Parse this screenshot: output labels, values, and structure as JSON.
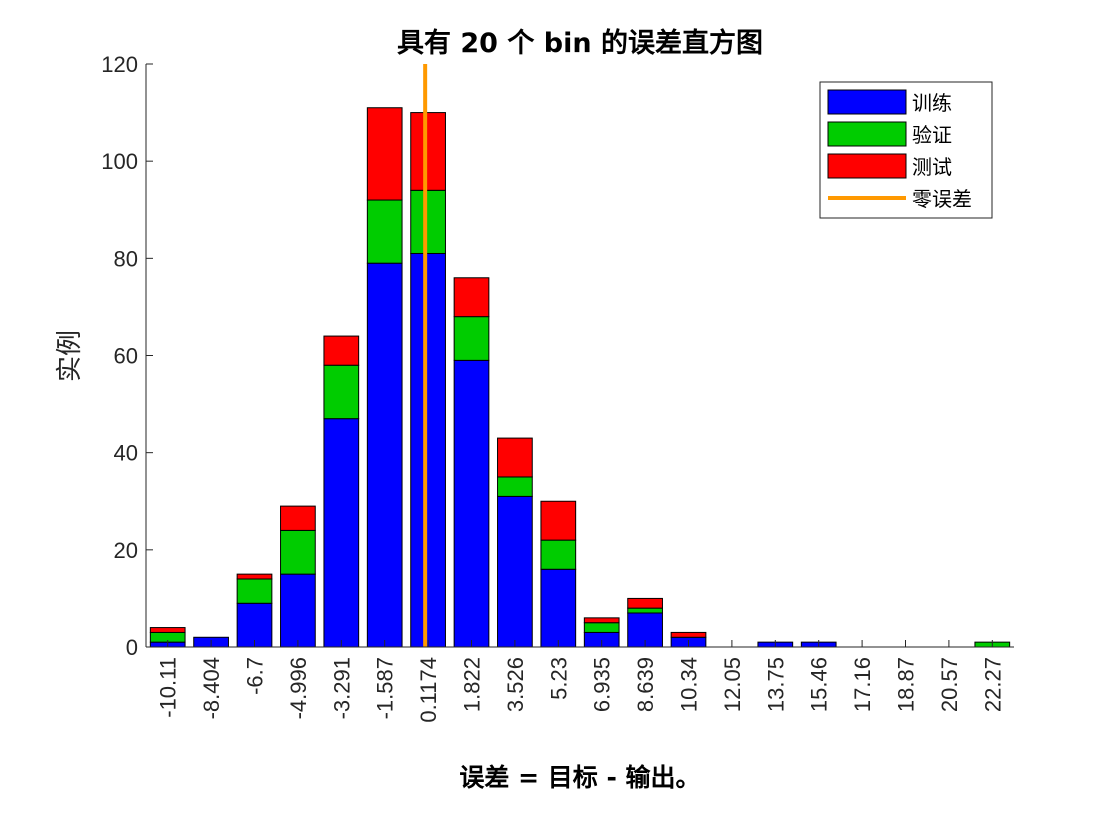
{
  "chart_data": {
    "type": "bar",
    "stacked": true,
    "title": "具有 20 个 bin 的误差直方图",
    "xlabel": "误差 = 目标 - 输出。",
    "ylabel": "实例",
    "ylim": [
      0,
      120
    ],
    "yticks": [
      0,
      20,
      40,
      60,
      80,
      100,
      120
    ],
    "categories": [
      "-10.11",
      "-8.404",
      "-6.7",
      "-4.996",
      "-3.291",
      "-1.587",
      "0.1174",
      "1.822",
      "3.526",
      "5.23",
      "6.935",
      "8.639",
      "10.34",
      "12.05",
      "13.75",
      "15.46",
      "17.16",
      "18.87",
      "20.57",
      "22.27"
    ],
    "series": [
      {
        "name": "训练",
        "color": "#0000ff",
        "values": [
          1,
          2,
          9,
          15,
          47,
          79,
          81,
          59,
          31,
          16,
          3,
          7,
          2,
          0,
          1,
          1,
          0,
          0,
          0,
          0
        ]
      },
      {
        "name": "验证",
        "color": "#00cc00",
        "values": [
          2,
          0,
          5,
          9,
          11,
          13,
          13,
          9,
          4,
          6,
          2,
          1,
          0,
          0,
          0,
          0,
          0,
          0,
          0,
          1
        ]
      },
      {
        "name": "测试",
        "color": "#ff0000",
        "values": [
          1,
          0,
          1,
          5,
          6,
          19,
          16,
          8,
          8,
          8,
          1,
          2,
          1,
          0,
          0,
          0,
          0,
          0,
          0,
          0
        ]
      }
    ],
    "zero_error_line": {
      "name": "零误差",
      "x": 0,
      "color": "#ff9900"
    },
    "legend": {
      "position": "top-right",
      "entries": [
        "训练",
        "验证",
        "测试",
        "零误差"
      ]
    },
    "grid": false
  }
}
